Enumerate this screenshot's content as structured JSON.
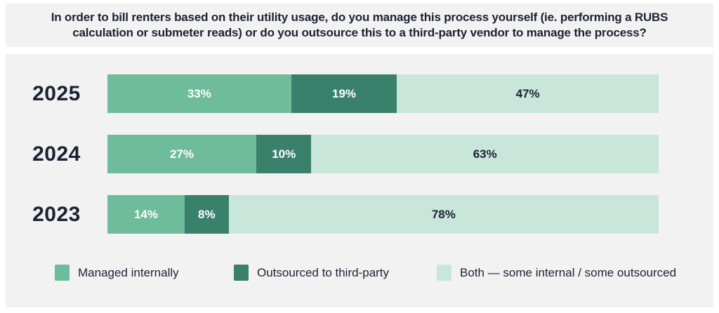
{
  "title": "In order to bill renters based on their utility usage, do you manage this process yourself (ie. performing a RUBS calculation or submeter reads) or do you outsource this to a third-party vendor to manage the process?",
  "colors": {
    "panel_bg": "#f2f2f2",
    "text_dark": "#1b2233",
    "managed_internally": "#6fbc9c",
    "outsourced": "#3a816b",
    "both": "#c9e6da"
  },
  "chart_data": {
    "type": "bar",
    "orientation": "horizontal",
    "stacked": true,
    "unit": "percent",
    "title": "In order to bill renters based on their utility usage, do you manage this process yourself (ie. performing a RUBS calculation or submeter reads) or do you outsource this to a third-party vendor to manage the process?",
    "categories": [
      "2025",
      "2024",
      "2023"
    ],
    "series": [
      {
        "name": "Managed internally",
        "color": "#6fbc9c",
        "label_color": "#ffffff",
        "values": [
          33,
          27,
          14
        ],
        "labels": [
          "33%",
          "27%",
          "14%"
        ]
      },
      {
        "name": "Outsourced to third-party",
        "color": "#3a816b",
        "label_color": "#ffffff",
        "values": [
          19,
          10,
          8
        ],
        "labels": [
          "19%",
          "10%",
          "8%"
        ]
      },
      {
        "name": "Both — some internal / some outsourced",
        "color": "#c9e6da",
        "label_color": "#1b2233",
        "values": [
          47,
          63,
          78
        ],
        "labels": [
          "47%",
          "63%",
          "78%"
        ]
      }
    ],
    "legend_position": "bottom",
    "xlim": [
      0,
      100
    ],
    "grid": false
  }
}
